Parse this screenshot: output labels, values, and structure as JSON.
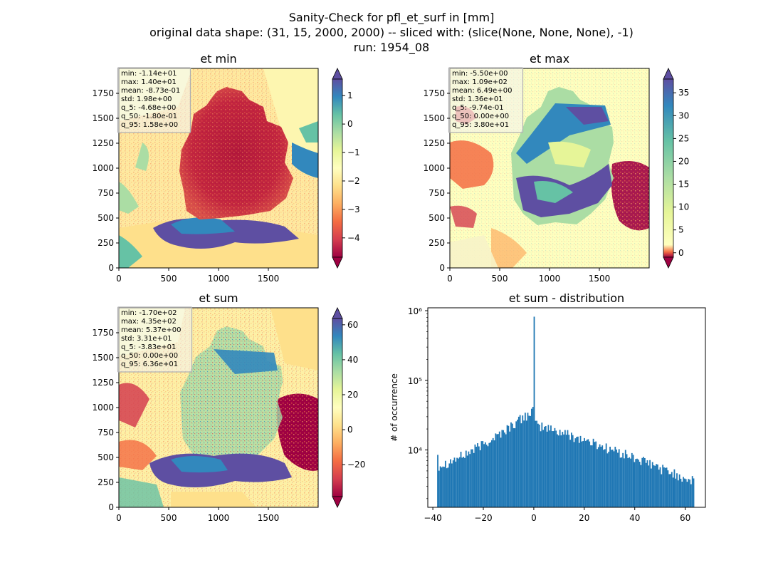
{
  "figure": {
    "title_lines": [
      "Sanity-Check for pfl_et_surf in [mm]",
      "original data shape: (31, 15, 2000, 2000) -- sliced with: (slice(None, None, None), -1)",
      "run: 1954_08"
    ]
  },
  "colors": {
    "spectral": [
      "#9e0142",
      "#d53e4f",
      "#f46d43",
      "#fdae61",
      "#fee08b",
      "#ffffbf",
      "#e6f598",
      "#abdda4",
      "#66c2a5",
      "#3288bd",
      "#5e4fa2"
    ],
    "hist_bar": "#1f77b4"
  },
  "chart_data": [
    {
      "type": "heatmap",
      "title": "et min",
      "x_ticks": [
        "0",
        "500",
        "1000",
        "1500"
      ],
      "y_ticks": [
        "0",
        "250",
        "500",
        "750",
        "1000",
        "1250",
        "1500",
        "1750"
      ],
      "xlim": [
        0,
        2000
      ],
      "ylim": [
        0,
        2000
      ],
      "colorbar": {
        "range": [
          -4.68,
          1.58
        ],
        "ticks": [
          "1",
          "0",
          "−1",
          "−2",
          "−3",
          "−4"
        ],
        "tick_values": [
          1,
          0,
          -1,
          -2,
          -3,
          -4
        ]
      },
      "stats": [
        "min: -1.14e+01",
        "max: 1.40e+01",
        "mean: -8.73e-01",
        "std: 1.98e+00",
        "q_5: -4.68e+00",
        "q_50: -1.80e-01",
        "q_95: 1.58e+00"
      ]
    },
    {
      "type": "heatmap",
      "title": "et max",
      "x_ticks": [
        "0",
        "500",
        "1000",
        "1500"
      ],
      "y_ticks": [
        "0",
        "250",
        "500",
        "750",
        "1000",
        "1250",
        "1500",
        "1750"
      ],
      "xlim": [
        0,
        2000
      ],
      "ylim": [
        0,
        2000
      ],
      "colorbar": {
        "range": [
          -0.974,
          38.0
        ],
        "ticks": [
          "35",
          "30",
          "25",
          "20",
          "15",
          "10",
          "5",
          "0"
        ],
        "tick_values": [
          35,
          30,
          25,
          20,
          15,
          10,
          5,
          0
        ]
      },
      "stats": [
        "min: -5.50e+00",
        "max: 1.09e+02",
        "mean: 6.49e+00",
        "std: 1.36e+01",
        "q_5: -9.74e-01",
        "q_50: 0.00e+00",
        "q_95: 3.80e+01"
      ]
    },
    {
      "type": "heatmap",
      "title": "et sum",
      "x_ticks": [
        "0",
        "500",
        "1000",
        "1500"
      ],
      "y_ticks": [
        "0",
        "250",
        "500",
        "750",
        "1000",
        "1250",
        "1500",
        "1750"
      ],
      "xlim": [
        0,
        2000
      ],
      "ylim": [
        0,
        2000
      ],
      "colorbar": {
        "range": [
          -38.3,
          63.6
        ],
        "ticks": [
          "60",
          "40",
          "20",
          "0",
          "−20"
        ],
        "tick_values": [
          60,
          40,
          20,
          0,
          -20
        ]
      },
      "stats": [
        "min: -1.70e+02",
        "max: 4.35e+02",
        "mean: 5.37e+00",
        "std: 3.31e+01",
        "q_5: -3.83e+01",
        "q_50: 0.00e+00",
        "q_95: 6.36e+01"
      ]
    },
    {
      "type": "bar",
      "title": "et sum - distribution",
      "ylabel": "# of occurrence",
      "yscale": "log",
      "xlim": [
        -42,
        68
      ],
      "ylim": [
        1500,
        1100000
      ],
      "x_ticks": [
        "−40",
        "−20",
        "0",
        "20",
        "40",
        "60"
      ],
      "x_tick_values": [
        -40,
        -20,
        0,
        20,
        40,
        60
      ],
      "y_ticks": [
        "10⁴",
        "10⁵",
        "10⁶"
      ],
      "y_tick_values": [
        10000,
        100000,
        1000000
      ],
      "bins": {
        "start": -38.3,
        "end": 63.6
      },
      "peak": {
        "x": 0,
        "value": 820000
      }
    }
  ]
}
